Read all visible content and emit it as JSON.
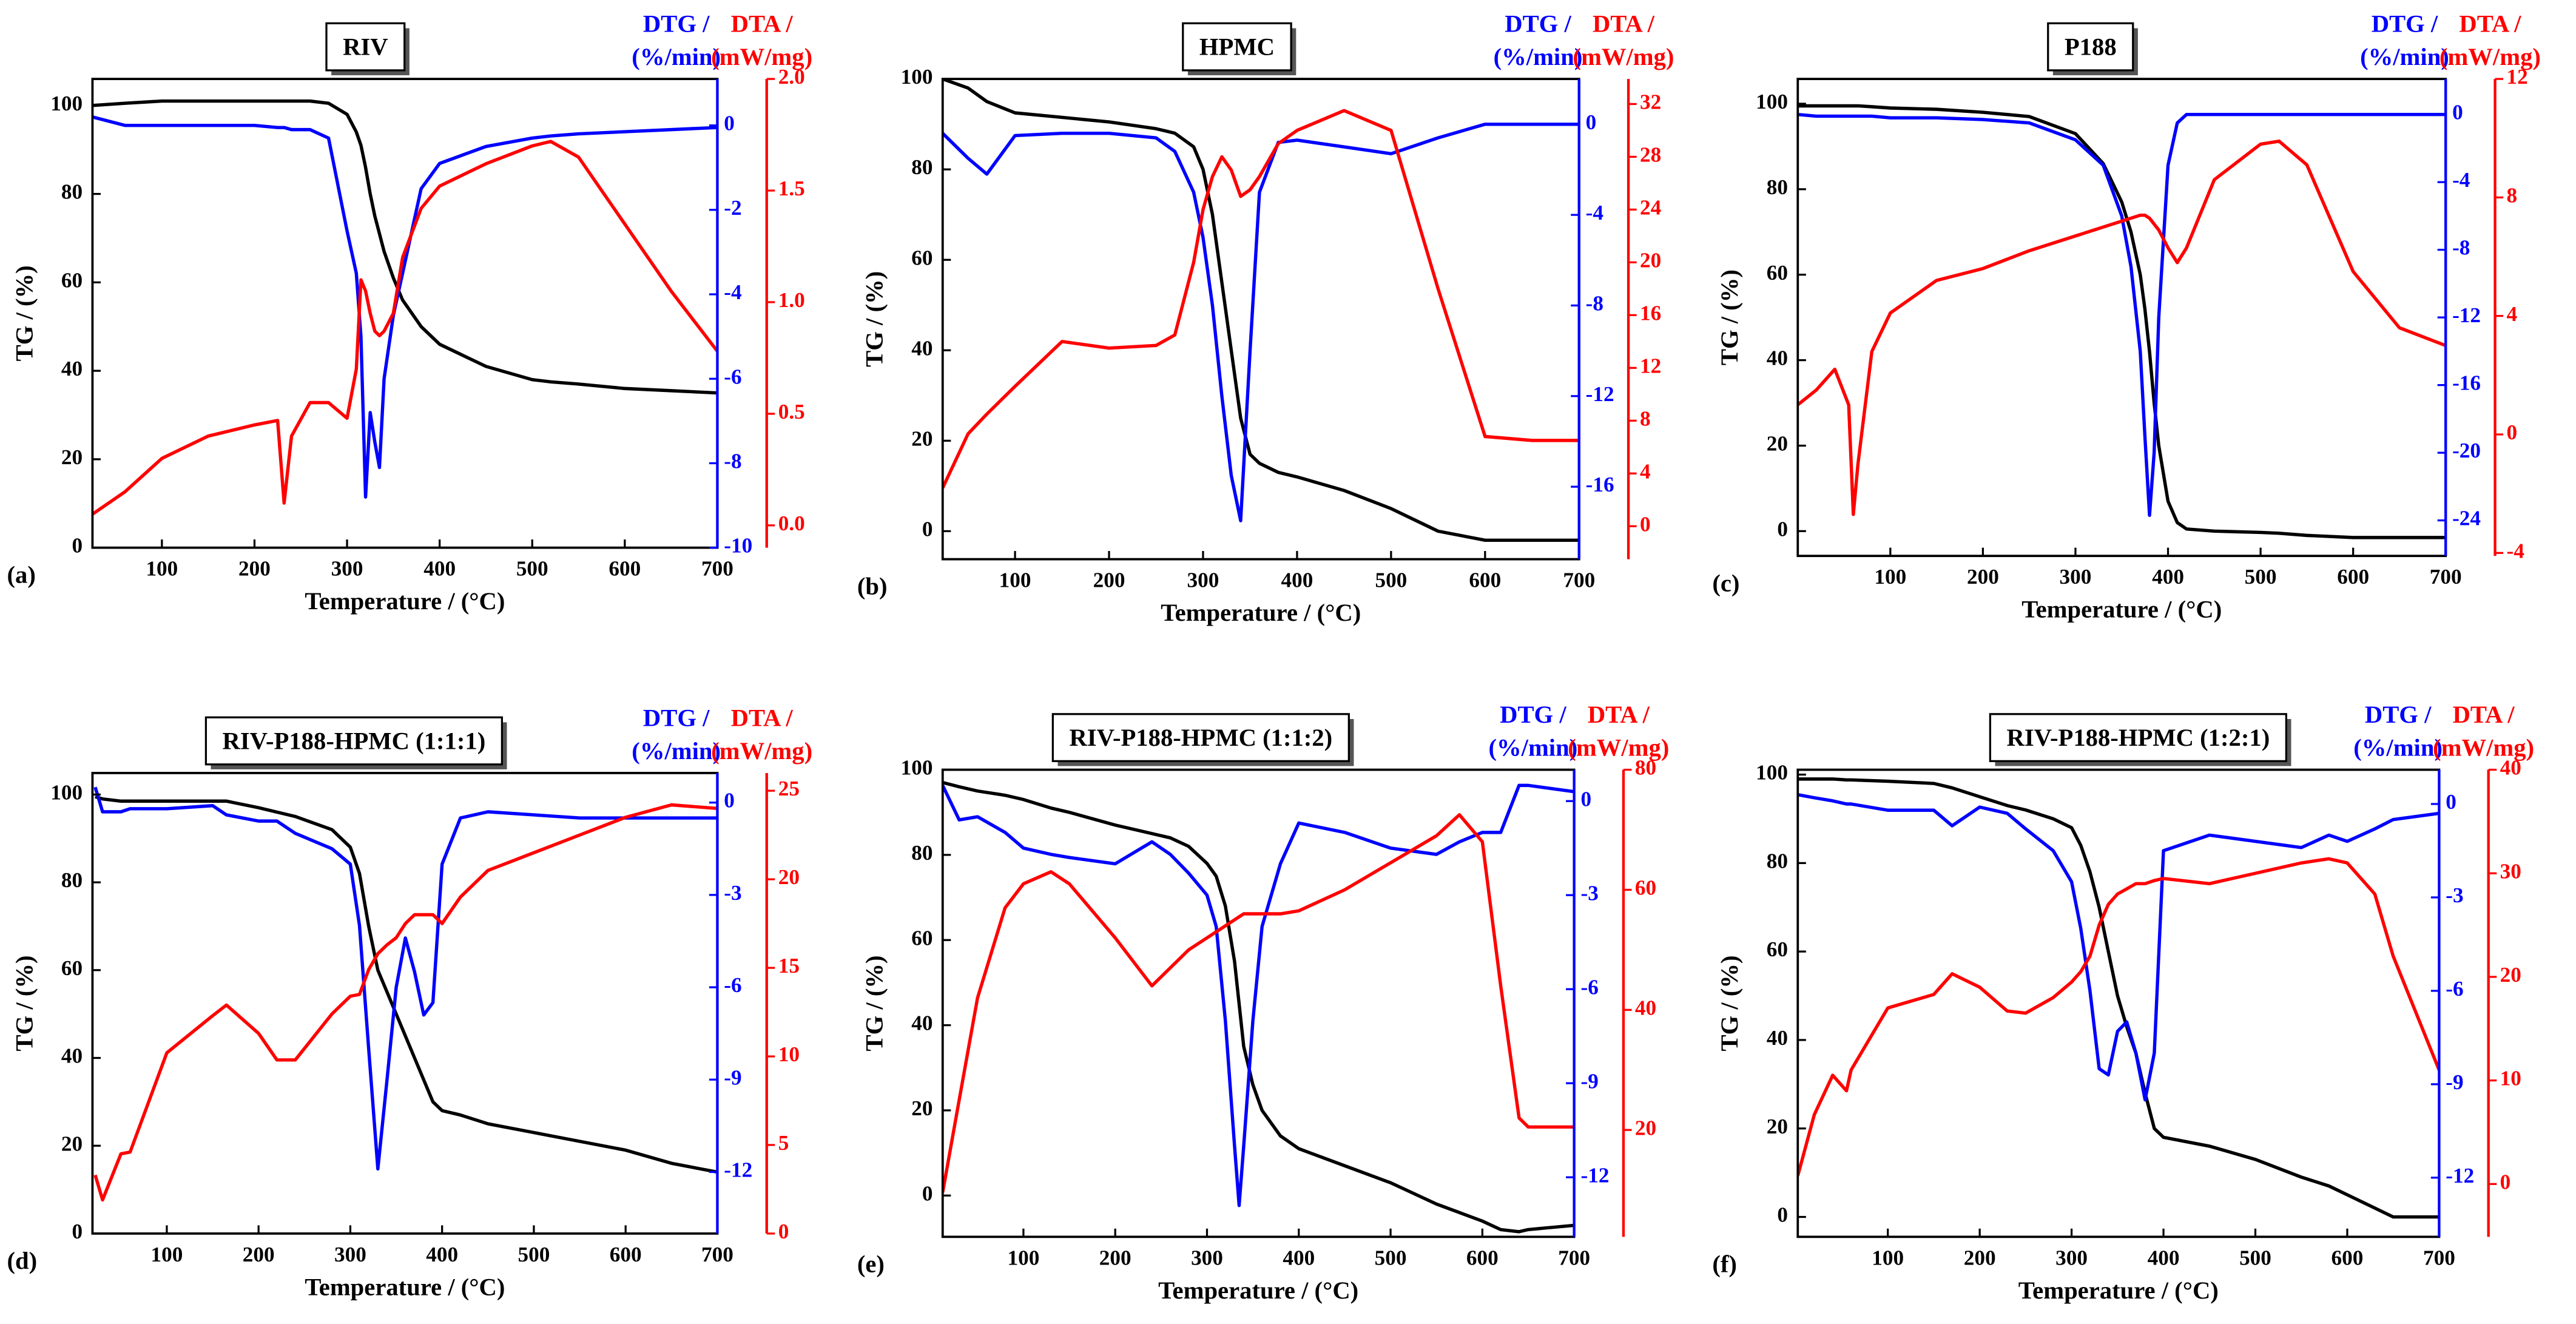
{
  "chart_data": [
    {
      "type": "line",
      "title": "RIV",
      "panel_label": "(a)",
      "xlabel": "Temperature / (°C)",
      "ylabel": "TG / (%)",
      "y2label": "DTG /",
      "y2unit": "(%/min)",
      "y3label": "DTA /",
      "y3unit": "(mW/mg)",
      "xlim": [
        25,
        700
      ],
      "xticks": [
        100,
        200,
        300,
        400,
        500,
        600,
        700
      ],
      "ylim": [
        0,
        106
      ],
      "yticks": [
        0,
        20,
        40,
        60,
        80,
        100
      ],
      "y2lim": [
        -10,
        1.1
      ],
      "y2ticks": [
        -10,
        -8,
        -6,
        -4,
        -2,
        0
      ],
      "y3lim": [
        -0.1,
        2
      ],
      "y3ticks": [
        {
          "value": 0,
          "label": "0.0"
        },
        0.5,
        {
          "value": 1,
          "label": "1.0"
        },
        1.5,
        {
          "value": 2,
          "label": "2.0"
        }
      ],
      "x": [
        25,
        60,
        100,
        150,
        200,
        225,
        232,
        240,
        260,
        280,
        300,
        310,
        315,
        320,
        325,
        330,
        335,
        340,
        350,
        360,
        380,
        400,
        450,
        500,
        520,
        550,
        600,
        650,
        700
      ],
      "series": [
        {
          "color": "#000000",
          "values": [
            100,
            100.5,
            101,
            101,
            101,
            101,
            101,
            101,
            101,
            100.5,
            98,
            94,
            91,
            86,
            80,
            75,
            71,
            67,
            61,
            56,
            50,
            46,
            41,
            38,
            37.5,
            37,
            36,
            35.5,
            35
          ]
        },
        {
          "color": "#0000ff",
          "axis": "y2",
          "values": [
            0.2,
            0,
            0,
            0,
            0,
            -0.05,
            -0.05,
            -0.1,
            -0.1,
            -0.3,
            -2.5,
            -3.5,
            -5,
            -8.8,
            -6.8,
            -7.5,
            -8.1,
            -6,
            -4.5,
            -3.5,
            -1.5,
            -0.9,
            -0.5,
            -0.3,
            -0.25,
            -0.2,
            -0.15,
            -0.1,
            -0.05
          ]
        },
        {
          "color": "#ff0000",
          "axis": "y3",
          "values": [
            0.05,
            0.15,
            0.3,
            0.4,
            0.45,
            0.47,
            0.1,
            0.4,
            0.55,
            0.55,
            0.48,
            0.7,
            1.1,
            1.05,
            0.95,
            0.87,
            0.85,
            0.87,
            0.95,
            1.2,
            1.42,
            1.52,
            1.62,
            1.7,
            1.72,
            1.65,
            1.35,
            1.05,
            0.78
          ]
        }
      ]
    },
    {
      "type": "line",
      "title": "HPMC",
      "panel_label": "(b)",
      "xlabel": "Temperature / (°C)",
      "ylabel": "TG / (%)",
      "y2label": "DTG /",
      "y2unit": "(%/min)",
      "y3label": "DTA /",
      "y3unit": "(mW/mg)",
      "xlim": [
        23,
        700
      ],
      "xticks": [
        100,
        200,
        300,
        400,
        500,
        600,
        700
      ],
      "ylim": [
        -6.2,
        100
      ],
      "yticks": [
        0,
        20,
        40,
        60,
        80,
        100
      ],
      "y2lim": [
        -19.2,
        2
      ],
      "y2ticks": [
        -16,
        -12,
        -8,
        -4,
        0
      ],
      "y3lim": [
        -2.5,
        33.9
      ],
      "y3ticks": [
        0,
        4,
        8,
        12,
        16,
        20,
        24,
        28,
        32
      ],
      "x": [
        23,
        50,
        70,
        100,
        150,
        200,
        250,
        270,
        290,
        300,
        310,
        320,
        330,
        340,
        350,
        360,
        380,
        400,
        450,
        500,
        550,
        600,
        650,
        700
      ],
      "series": [
        {
          "color": "#000000",
          "values": [
            100,
            98,
            95,
            92.5,
            91.5,
            90.5,
            89,
            88,
            85,
            80,
            70,
            55,
            40,
            25,
            17,
            15,
            13,
            12,
            9,
            5,
            0,
            -2,
            -2,
            -2
          ]
        },
        {
          "color": "#0000ff",
          "axis": "y2",
          "values": [
            -0.4,
            -1.5,
            -2.2,
            -0.5,
            -0.4,
            -0.4,
            -0.6,
            -1.2,
            -3,
            -5,
            -8,
            -12,
            -15.5,
            -17.5,
            -10,
            -3,
            -0.8,
            -0.7,
            -1,
            -1.3,
            -0.6,
            0,
            0,
            0
          ]
        },
        {
          "color": "#ff0000",
          "axis": "y3",
          "values": [
            2.9,
            7,
            8.5,
            10.6,
            14,
            13.5,
            13.7,
            14.5,
            20,
            24,
            26.5,
            28,
            27,
            25,
            25.5,
            26.5,
            29,
            30,
            31.5,
            30,
            18,
            6.8,
            6.5,
            6.5
          ]
        }
      ]
    },
    {
      "type": "line",
      "title": "P188",
      "panel_label": "(c)",
      "xlabel": "Temperature / (°C)",
      "ylabel": "TG / (%)",
      "y2label": "DTG /",
      "y2unit": "(%/min)",
      "y3label": "DTA /",
      "y3unit": "(mW/mg)",
      "xlim": [
        0,
        700
      ],
      "xticks": [
        100,
        200,
        300,
        400,
        500,
        600,
        700
      ],
      "ylim": [
        -5.8,
        105.8
      ],
      "yticks": [
        0,
        20,
        40,
        60,
        80,
        100
      ],
      "y2lim": [
        -26.1,
        2.1
      ],
      "y2ticks": [
        -24,
        -20,
        -16,
        -12,
        -8,
        -4,
        0
      ],
      "y3lim": [
        -4.1,
        12
      ],
      "y3ticks": [
        -4,
        0,
        4,
        8,
        12
      ],
      "x": [
        0,
        20,
        40,
        55,
        60,
        65,
        80,
        100,
        150,
        200,
        250,
        300,
        330,
        350,
        360,
        370,
        375,
        380,
        385,
        390,
        400,
        410,
        420,
        450,
        500,
        520,
        550,
        600,
        650,
        700
      ],
      "series": [
        {
          "color": "#000000",
          "values": [
            99.5,
            99.5,
            99.5,
            99.5,
            99.5,
            99.5,
            99.3,
            99,
            98.7,
            98,
            97,
            93,
            86,
            77,
            70,
            60,
            52,
            42,
            30,
            20,
            7,
            2,
            0.5,
            0,
            -0.3,
            -0.5,
            -1,
            -1.5,
            -1.5,
            -1.5
          ]
        },
        {
          "color": "#0000ff",
          "axis": "y2",
          "values": [
            0,
            -0.1,
            -0.1,
            -0.1,
            -0.1,
            -0.1,
            -0.1,
            -0.2,
            -0.2,
            -0.3,
            -0.5,
            -1.5,
            -3,
            -6,
            -9,
            -14,
            -19,
            -23.7,
            -20,
            -12,
            -3,
            -0.5,
            0,
            0,
            0,
            0,
            0,
            0,
            0,
            0
          ]
        },
        {
          "color": "#ff0000",
          "axis": "y3",
          "values": [
            1.0,
            1.5,
            2.2,
            1.0,
            -2.7,
            -1,
            2.8,
            4.1,
            5.2,
            5.6,
            6.2,
            6.7,
            7.0,
            7.2,
            7.3,
            7.4,
            7.4,
            7.3,
            7.1,
            6.9,
            6.3,
            5.8,
            6.3,
            8.6,
            9.8,
            9.9,
            9.1,
            5.5,
            3.6,
            3.0
          ]
        }
      ]
    },
    {
      "type": "line",
      "title": "RIV-P188-HPMC (1:1:1)",
      "panel_label": "(d)",
      "xlabel": "Temperature / (°C)",
      "ylabel": "TG / (%)",
      "y2label": "DTG /",
      "y2unit": "(%/min)",
      "y3label": "DTA /",
      "y3unit": "(mW/mg)",
      "xlim": [
        19,
        700
      ],
      "xticks": [
        100,
        200,
        300,
        400,
        500,
        600,
        700
      ],
      "ylim": [
        0,
        104.9
      ],
      "yticks": [
        0,
        20,
        40,
        60,
        80,
        100
      ],
      "y2lim": [
        -14,
        0.96
      ],
      "y2ticks": [
        -12,
        -9,
        -6,
        -3,
        0
      ],
      "y3lim": [
        0,
        26
      ],
      "y3ticks": [
        0,
        5,
        10,
        15,
        20,
        25
      ],
      "x": [
        22,
        30,
        50,
        60,
        100,
        150,
        165,
        200,
        220,
        240,
        280,
        300,
        310,
        320,
        330,
        340,
        350,
        360,
        370,
        380,
        390,
        400,
        420,
        450,
        500,
        550,
        600,
        650,
        700
      ],
      "series": [
        {
          "color": "#000000",
          "values": [
            99.5,
            99,
            98.5,
            98.5,
            98.5,
            98.5,
            98.5,
            97,
            96,
            95,
            92,
            88,
            82,
            70,
            60,
            55,
            50,
            45,
            40,
            35,
            30,
            28,
            27,
            25,
            23,
            21,
            19,
            16,
            14
          ]
        },
        {
          "color": "#0000ff",
          "axis": "y2",
          "values": [
            0.5,
            -0.3,
            -0.3,
            -0.2,
            -0.2,
            -0.1,
            -0.4,
            -0.6,
            -0.6,
            -1,
            -1.5,
            -2,
            -4,
            -8,
            -11.9,
            -9,
            -6,
            -4.4,
            -5.5,
            -6.9,
            -6.5,
            -2,
            -0.5,
            -0.3,
            -0.4,
            -0.5,
            -0.5,
            -0.5,
            -0.5
          ]
        },
        {
          "color": "#ff0000",
          "axis": "y3",
          "values": [
            3.3,
            1.9,
            4.5,
            4.6,
            10.2,
            12.3,
            12.9,
            11.3,
            9.8,
            9.8,
            12.4,
            13.4,
            13.5,
            14.9,
            15.8,
            16.3,
            16.7,
            17.5,
            18,
            18,
            18,
            17.5,
            19,
            20.5,
            21.5,
            22.5,
            23.5,
            24.2,
            24
          ]
        }
      ]
    },
    {
      "type": "line",
      "title": "RIV-P188-HPMC (1:1:2)",
      "panel_label": "(e)",
      "xlabel": "Temperature / (°C)",
      "ylabel": "TG / (%)",
      "y2label": "DTG /",
      "y2unit": "(%/min)",
      "y3label": "DTA /",
      "y3unit": "(mW/mg)",
      "xlim": [
        12,
        700
      ],
      "xticks": [
        100,
        200,
        300,
        400,
        500,
        600,
        700
      ],
      "ylim": [
        -9.7,
        100
      ],
      "yticks": [
        0,
        20,
        40,
        60,
        80,
        100
      ],
      "y2lim": [
        -13.9,
        1
      ],
      "y2ticks": [
        -12,
        -9,
        -6,
        -3,
        0
      ],
      "y3lim": [
        2.2,
        80
      ],
      "y3ticks": [
        20,
        40,
        60,
        80
      ],
      "x": [
        12,
        30,
        50,
        80,
        100,
        130,
        150,
        200,
        240,
        260,
        280,
        300,
        310,
        320,
        330,
        335,
        340,
        350,
        360,
        380,
        400,
        450,
        500,
        550,
        575,
        600,
        620,
        640,
        650,
        700
      ],
      "series": [
        {
          "color": "#000000",
          "values": [
            97,
            96,
            95,
            94,
            93,
            91,
            90,
            87,
            85,
            84,
            82,
            78,
            75,
            68,
            55,
            45,
            35,
            26,
            20,
            14,
            11,
            7,
            3,
            -2,
            -4,
            -6,
            -8,
            -8.5,
            -8,
            -7
          ]
        },
        {
          "color": "#0000ff",
          "axis": "y2",
          "values": [
            0.5,
            -0.6,
            -0.5,
            -1,
            -1.5,
            -1.7,
            -1.8,
            -2,
            -1.3,
            -1.7,
            -2.3,
            -3,
            -4,
            -7,
            -11,
            -12.9,
            -11,
            -7,
            -4,
            -2,
            -0.7,
            -1,
            -1.5,
            -1.7,
            -1.3,
            -1,
            -1,
            0.5,
            0.5,
            0.3
          ]
        },
        {
          "color": "#ff0000",
          "axis": "y3",
          "values": [
            9.6,
            25,
            42,
            57,
            61,
            63,
            61,
            52,
            44,
            47,
            50,
            52,
            53,
            54,
            55,
            55.5,
            56,
            56,
            56,
            56,
            56.5,
            60,
            64.5,
            69,
            72.5,
            68,
            44,
            22,
            20.5,
            20.5
          ]
        }
      ]
    },
    {
      "type": "line",
      "title": "RIV-P188-HPMC (1:2:1)",
      "panel_label": "(f)",
      "xlabel": "Temperature / (°C)",
      "ylabel": "TG / (%)",
      "y2label": "DTG /",
      "y2unit": "(%/min)",
      "y3label": "DTA /",
      "y3unit": "(mW/mg)",
      "xlim": [
        2,
        700
      ],
      "xticks": [
        100,
        200,
        300,
        400,
        500,
        600,
        700
      ],
      "ylim": [
        -4.5,
        101.1
      ],
      "yticks": [
        0,
        20,
        40,
        60,
        80,
        100
      ],
      "y2lim": [
        -13.9,
        1.1
      ],
      "y2ticks": [
        -12,
        -9,
        -6,
        -3,
        0
      ],
      "y3lim": [
        -5.1,
        40
      ],
      "y3ticks": [
        0,
        10,
        20,
        30,
        40
      ],
      "x": [
        2,
        20,
        40,
        55,
        60,
        100,
        150,
        170,
        200,
        230,
        250,
        280,
        300,
        310,
        320,
        330,
        340,
        350,
        360,
        370,
        380,
        390,
        400,
        450,
        500,
        550,
        580,
        600,
        630,
        650,
        700
      ],
      "series": [
        {
          "color": "#000000",
          "values": [
            99,
            99,
            99,
            98.8,
            98.8,
            98.5,
            98,
            97,
            95,
            93,
            92,
            90,
            88,
            84,
            78,
            70,
            60,
            50,
            43,
            37,
            28,
            20,
            18,
            16,
            13,
            9,
            7,
            5,
            2,
            0,
            0
          ]
        },
        {
          "color": "#0000ff",
          "axis": "y2",
          "values": [
            0.3,
            0.2,
            0.1,
            0,
            0,
            -0.2,
            -0.2,
            -0.7,
            -0.1,
            -0.3,
            -0.8,
            -1.5,
            -2.5,
            -4,
            -6,
            -8.5,
            -8.7,
            -7.3,
            -7,
            -8,
            -9.5,
            -8,
            -1.5,
            -1,
            -1.2,
            -1.4,
            -1,
            -1.2,
            -0.8,
            -0.5,
            -0.3
          ]
        },
        {
          "color": "#ff0000",
          "axis": "y3",
          "values": [
            0.8,
            6.7,
            10.5,
            9,
            11,
            17,
            18.3,
            20.3,
            19,
            16.7,
            16.5,
            18,
            19.5,
            20.5,
            22,
            25,
            27,
            28,
            28.5,
            29,
            29,
            29.3,
            29.5,
            29,
            30,
            31,
            31.4,
            31,
            28,
            22,
            11
          ]
        }
      ]
    }
  ]
}
